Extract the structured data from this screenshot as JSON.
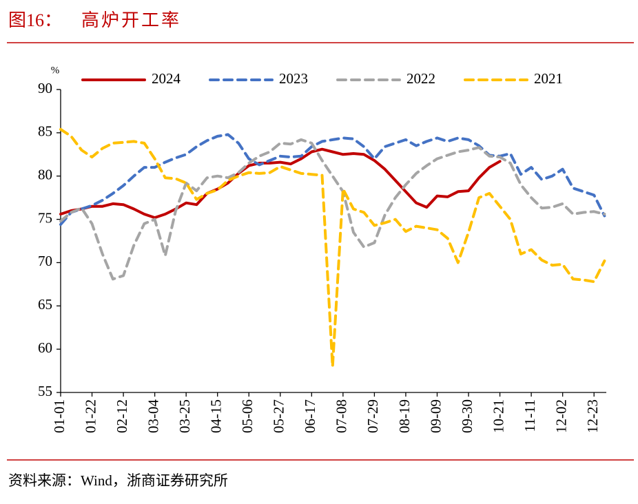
{
  "chart_data": {
    "type": "line",
    "figure_label": "图16：",
    "title": "高炉开工率",
    "ylabel": "%",
    "source": "资料来源：Wind，浙商证券研究所",
    "categories": [
      "01-01",
      null,
      null,
      "01-22",
      null,
      null,
      "02-12",
      null,
      null,
      "03-04",
      null,
      null,
      "03-25",
      null,
      null,
      "04-15",
      null,
      null,
      "05-06",
      null,
      null,
      "05-27",
      null,
      null,
      "06-17",
      null,
      null,
      "07-08",
      null,
      null,
      "07-29",
      null,
      null,
      "08-19",
      null,
      null,
      "09-09",
      null,
      null,
      "09-30",
      null,
      null,
      "10-21",
      null,
      null,
      "11-11",
      null,
      null,
      "12-02",
      null,
      null,
      "12-23",
      null
    ],
    "ylim": [
      55,
      90
    ],
    "yticks": [
      55,
      60,
      65,
      70,
      75,
      80,
      85,
      90
    ],
    "grid": false,
    "series": [
      {
        "name": "2024",
        "color": "#c00000",
        "style": "solid",
        "values": [
          75.6,
          76.0,
          76.2,
          76.5,
          76.5,
          76.8,
          76.7,
          76.2,
          75.6,
          75.2,
          75.6,
          76.2,
          76.9,
          76.7,
          78.0,
          78.5,
          79.2,
          80.3,
          81.2,
          81.5,
          81.5,
          81.6,
          81.4,
          82.0,
          82.8,
          83.1,
          82.8,
          82.5,
          82.6,
          82.5,
          81.8,
          80.8,
          79.5,
          78.2,
          76.9,
          76.4,
          77.7,
          77.6,
          78.2,
          78.3,
          79.8,
          81.0,
          81.7,
          null,
          null,
          null,
          null,
          null,
          null,
          null,
          null,
          null,
          null
        ]
      },
      {
        "name": "2023",
        "color": "#4472c4",
        "style": "dashed",
        "values": [
          74.4,
          75.8,
          76.2,
          76.6,
          77.2,
          78.0,
          78.9,
          80.0,
          81.0,
          81.0,
          81.6,
          82.1,
          82.5,
          83.4,
          84.1,
          84.6,
          84.8,
          83.8,
          82.0,
          81.3,
          81.8,
          82.3,
          82.2,
          82.3,
          83.4,
          84.0,
          84.2,
          84.4,
          84.3,
          83.4,
          82.0,
          83.4,
          83.8,
          84.2,
          83.5,
          84.0,
          84.4,
          84.0,
          84.4,
          84.2,
          83.5,
          82.4,
          82.3,
          82.6,
          80.2,
          81.0,
          79.6,
          80.0,
          80.8,
          78.6,
          78.2,
          77.8,
          75.4
        ]
      },
      {
        "name": "2022",
        "color": "#a5a5a5",
        "style": "dashed",
        "values": [
          74.8,
          75.8,
          76.3,
          74.5,
          71.0,
          68.1,
          68.5,
          72.0,
          74.5,
          75.0,
          70.8,
          76.0,
          79.2,
          78.3,
          79.8,
          80.0,
          79.8,
          80.4,
          81.5,
          82.3,
          82.8,
          83.8,
          83.7,
          84.2,
          83.8,
          81.8,
          80.0,
          78.2,
          73.5,
          71.8,
          72.3,
          75.5,
          77.5,
          79.0,
          80.3,
          81.2,
          82.0,
          82.4,
          82.8,
          83.0,
          83.3,
          82.3,
          82.2,
          81.5,
          79.0,
          77.5,
          76.3,
          76.4,
          76.8,
          75.6,
          75.8,
          75.9,
          75.6
        ]
      },
      {
        "name": "2021",
        "color": "#ffc000",
        "style": "dashed",
        "values": [
          85.4,
          84.6,
          83.0,
          82.2,
          83.2,
          83.8,
          83.9,
          84.0,
          83.8,
          82.0,
          79.8,
          79.7,
          79.2,
          77.3,
          78.0,
          78.4,
          79.5,
          80.0,
          80.4,
          80.3,
          80.4,
          81.1,
          80.7,
          80.3,
          80.2,
          80.1,
          58.0,
          78.5,
          76.2,
          75.8,
          74.3,
          74.6,
          75.0,
          73.6,
          74.2,
          74.0,
          73.8,
          72.8,
          70.0,
          73.5,
          77.5,
          78.0,
          76.5,
          75.0,
          71.0,
          71.5,
          70.3,
          69.7,
          69.8,
          68.1,
          68.0,
          67.8,
          70.2
        ]
      }
    ]
  }
}
